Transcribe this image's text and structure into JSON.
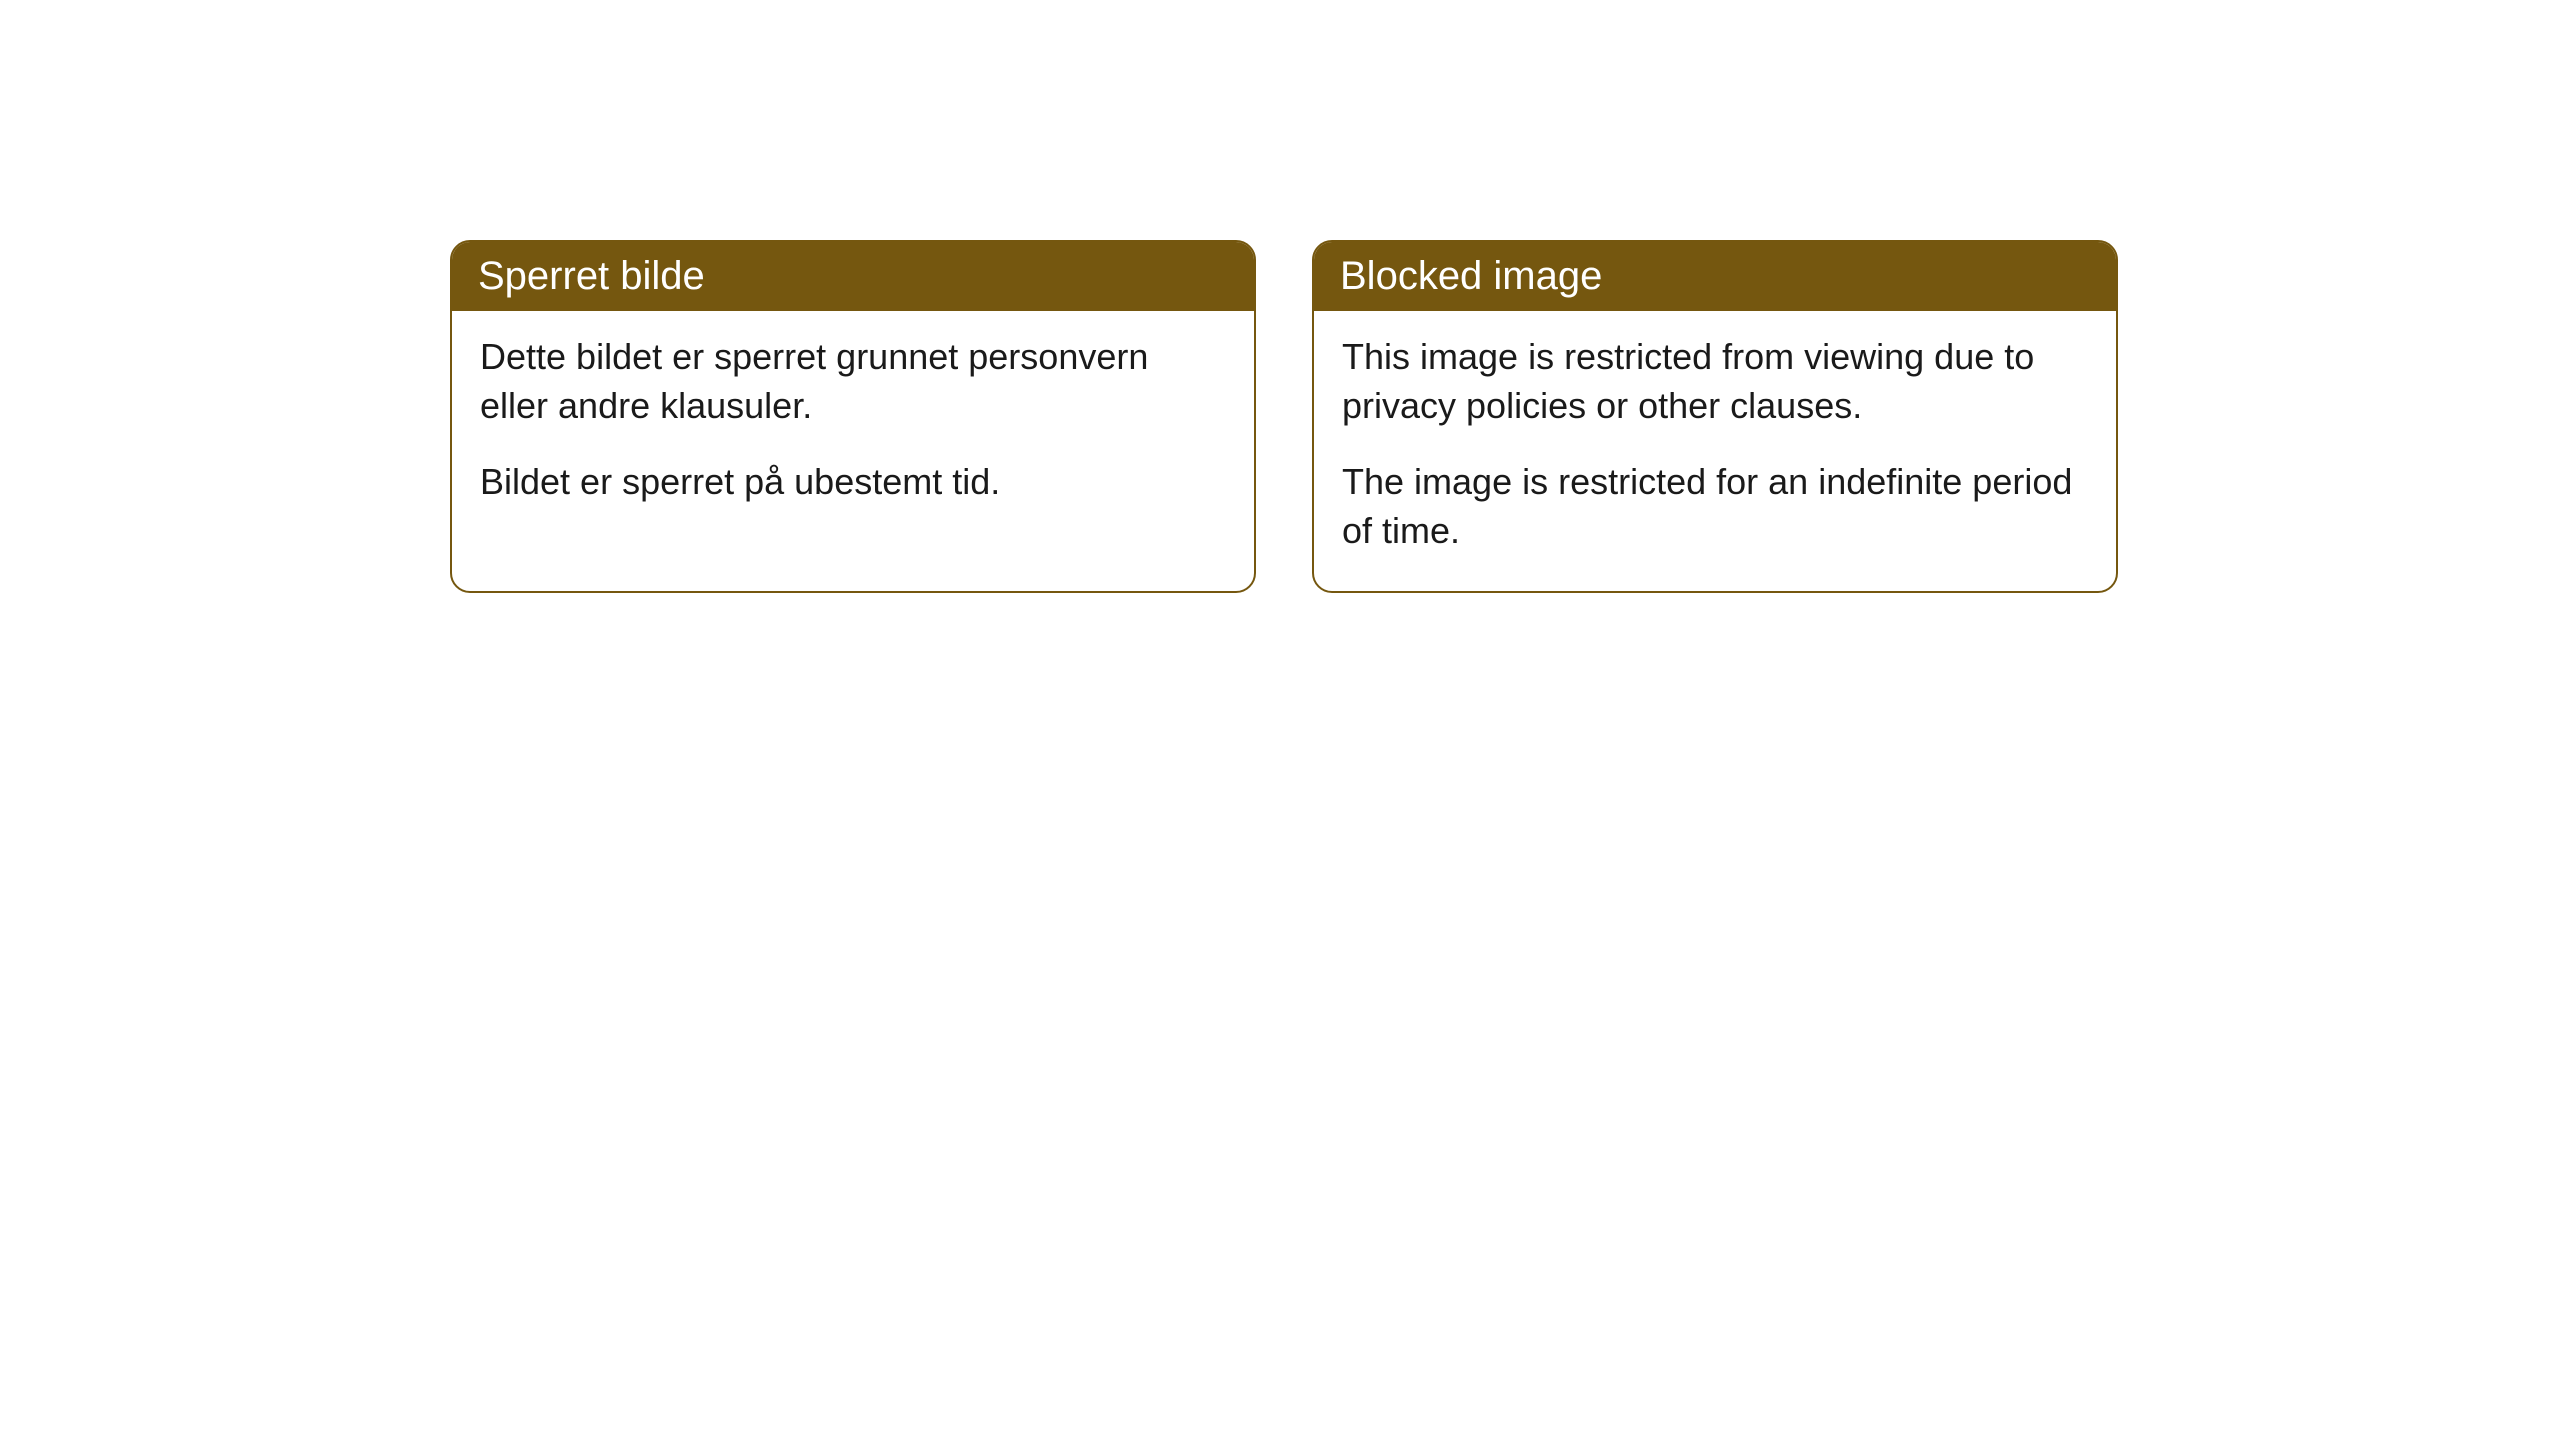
{
  "cards": [
    {
      "title": "Sperret bilde",
      "paragraph1": "Dette bildet er sperret grunnet personvern eller andre klausuler.",
      "paragraph2": "Bildet er sperret på ubestemt tid."
    },
    {
      "title": "Blocked image",
      "paragraph1": "This image is restricted from viewing due to privacy policies or other clauses.",
      "paragraph2": "The image is restricted for an indefinite period of time."
    }
  ],
  "styling": {
    "header_bg_color": "#75570f",
    "header_text_color": "#ffffff",
    "border_color": "#75570f",
    "body_bg_color": "#ffffff",
    "body_text_color": "#1a1a1a",
    "border_radius": 20,
    "header_fontsize": 40,
    "body_fontsize": 36
  }
}
